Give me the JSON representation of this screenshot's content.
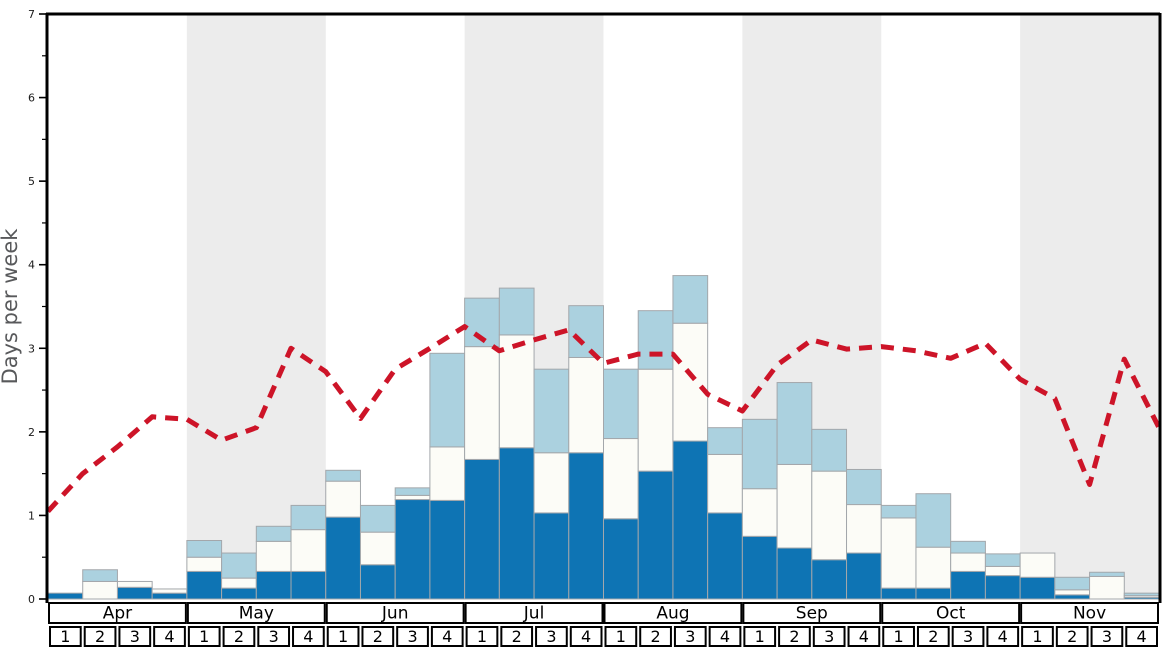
{
  "chart_data": {
    "type": "bar",
    "subtype": "stacked-bar-with-dashed-line",
    "title": "",
    "xlabel": "",
    "ylabel": "Days per week",
    "ylim": [
      0,
      7
    ],
    "y_major_ticks": [
      0,
      1,
      2,
      3,
      4,
      5,
      6,
      7
    ],
    "y_minor_tick_step": 0.5,
    "grid": false,
    "legend_position": "none",
    "months": [
      "Apr",
      "May",
      "Jun",
      "Jul",
      "Aug",
      "Sep",
      "Oct",
      "Nov"
    ],
    "week_labels_per_month": [
      "1",
      "2",
      "3",
      "4"
    ],
    "shaded_month_indices": [
      1,
      3,
      5,
      7
    ],
    "stacked_series": [
      {
        "name": "dark-blue-bottom-segment",
        "color": "#0e74b4",
        "values": [
          0.07,
          0.0,
          0.14,
          0.07,
          0.33,
          0.13,
          0.33,
          0.33,
          0.98,
          0.41,
          1.19,
          1.18,
          1.67,
          1.81,
          1.03,
          1.75,
          0.96,
          1.53,
          1.89,
          1.03,
          0.75,
          0.61,
          0.47,
          0.55,
          0.13,
          0.13,
          0.33,
          0.28,
          0.26,
          0.05,
          0.0,
          0.02
        ]
      },
      {
        "name": "white-middle-segment",
        "color": "#fcfcf7",
        "values": [
          0.0,
          0.21,
          0.07,
          0.05,
          0.17,
          0.12,
          0.36,
          0.5,
          0.43,
          0.39,
          0.05,
          0.64,
          1.35,
          1.35,
          0.72,
          1.14,
          0.96,
          1.22,
          1.41,
          0.7,
          0.57,
          1.0,
          1.06,
          0.58,
          0.84,
          0.49,
          0.22,
          0.11,
          0.29,
          0.06,
          0.27,
          0.02
        ]
      },
      {
        "name": "light-blue-top-segment",
        "color": "#abd1df",
        "values": [
          0.0,
          0.14,
          0.0,
          0.0,
          0.2,
          0.3,
          0.18,
          0.29,
          0.13,
          0.32,
          0.09,
          1.12,
          0.58,
          0.56,
          1.0,
          0.62,
          0.83,
          0.7,
          0.57,
          0.32,
          0.83,
          0.98,
          0.5,
          0.42,
          0.15,
          0.64,
          0.14,
          0.15,
          0.0,
          0.15,
          0.05,
          0.03
        ]
      }
    ],
    "line_series": {
      "name": "red-dashed-trend-line",
      "style": "dashed",
      "color": "#cd1428",
      "points_at_week_edges": [
        1.05,
        1.5,
        1.82,
        2.18,
        2.15,
        1.9,
        2.05,
        3.0,
        2.72,
        2.16,
        2.75,
        3.0,
        3.26,
        2.97,
        3.1,
        3.22,
        2.82,
        2.93,
        2.93,
        2.45,
        2.25,
        2.8,
        3.1,
        2.99,
        3.02,
        2.97,
        2.88,
        3.06,
        2.63,
        2.4,
        1.37,
        2.87,
        2.05
      ]
    },
    "colors": {
      "band_gray": "#ececec",
      "bar_outline": "#a3a7ab",
      "axis": "#000000",
      "tick_label": "#1a1a1a",
      "ylabel_gray": "#58595b",
      "label_box_border": "#000000",
      "label_box_fill": "#ffffff",
      "plot_background": "#ffffff"
    }
  }
}
